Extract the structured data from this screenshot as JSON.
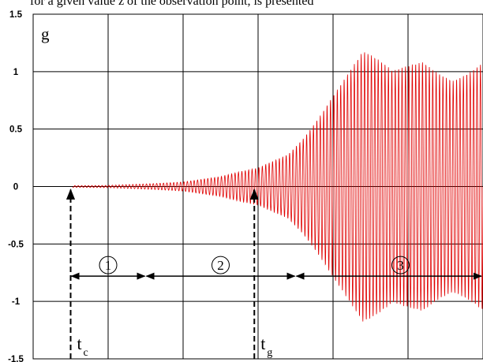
{
  "caption": "for a given value z of the observation point, is presented",
  "chart_data": {
    "type": "line",
    "ylabel": "g",
    "ylim": [
      -1.5,
      1.5
    ],
    "yticks": [
      "1.5",
      "1",
      "0.5",
      "0",
      "-0.5",
      "-1",
      "-1.5"
    ],
    "grid": true,
    "colors": {
      "signal": "#e00000",
      "grid": "#000000",
      "marker": "#000000"
    },
    "signal": {
      "start_level": 0.0,
      "envelope": [
        {
          "t": 0.0,
          "amp": 0.003
        },
        {
          "t": 1.0,
          "amp": 0.01
        },
        {
          "t": 2.0,
          "amp": 0.04
        },
        {
          "t": 2.5,
          "amp": 0.08
        },
        {
          "t": 3.0,
          "amp": 0.16
        },
        {
          "t": 3.4,
          "amp": 0.3
        },
        {
          "t": 3.6,
          "amp": 0.45
        },
        {
          "t": 4.0,
          "amp": 0.8
        },
        {
          "t": 4.4,
          "amp": 1.1
        },
        {
          "t": 4.8,
          "amp": 0.95
        },
        {
          "t": 5.2,
          "amp": 1.12
        },
        {
          "t": 5.6,
          "amp": 1.0
        },
        {
          "t": 6.0,
          "amp": 1.1
        },
        {
          "t": 6.3,
          "amp": 1.05
        }
      ]
    },
    "markers": [
      {
        "label": "t",
        "sub": "c",
        "t": 0.5
      },
      {
        "label": "t",
        "sub": "g",
        "t": 2.95
      },
      {
        "label": "t",
        "sub": "",
        "t": 6.2
      }
    ],
    "zones": [
      {
        "label": "1",
        "from": 0.5,
        "to": 1.5
      },
      {
        "label": "2",
        "from": 1.5,
        "to": 3.5
      },
      {
        "label": "3",
        "from": 3.5,
        "to": 6.3
      }
    ]
  }
}
